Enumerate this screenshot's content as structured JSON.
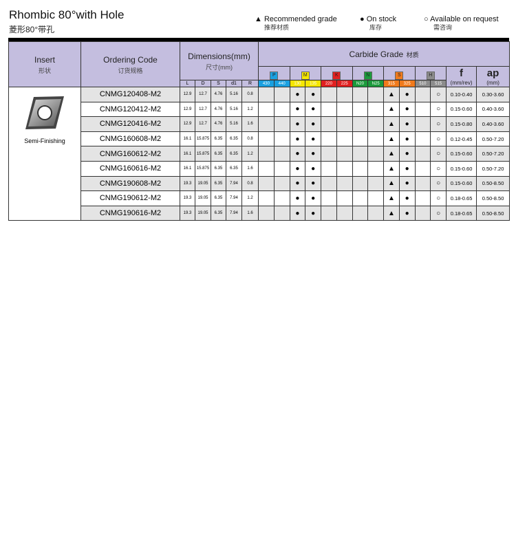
{
  "title": "Rhombic 80°with Hole",
  "subtitle": "菱形80°带孔",
  "legend": [
    {
      "icon": "triangle",
      "symbol": "▲",
      "label": "Recommended grade",
      "label_cn": "推荐材质"
    },
    {
      "icon": "filled-circle",
      "symbol": "●",
      "label": "On stock",
      "label_cn": "库存"
    },
    {
      "icon": "open-circle",
      "symbol": "○",
      "label": "Available on request",
      "label_cn": "需咨询"
    }
  ],
  "header": {
    "insert": "Insert",
    "insert_cn": "形状",
    "ordering": "Ordering Code",
    "ordering_cn": "订货规格",
    "dims": "Dimensions(mm)",
    "dims_cn": "尺寸(mm)",
    "dim_cols": [
      "L",
      "D",
      "S",
      "d1",
      "R"
    ],
    "carbide": "Carbide Grade",
    "carbide_cn": "材质",
    "f": "f",
    "f_unit": "(mm/rev)",
    "ap": "ap",
    "ap_unit": "(mm)"
  },
  "groups": [
    {
      "letter": "P",
      "color": "#1aa0e0",
      "grades": [
        "430",
        "440"
      ]
    },
    {
      "letter": "M",
      "color": "#f5e600",
      "grades": [
        "130",
        "135"
      ]
    },
    {
      "letter": "K",
      "color": "#e02020",
      "grades": [
        "220",
        "225"
      ]
    },
    {
      "letter": "N",
      "color": "#1c9a3c",
      "grades": [
        "N20",
        "N25"
      ]
    },
    {
      "letter": "S",
      "color": "#f07a1c",
      "grades": [
        "315",
        "325"
      ]
    },
    {
      "letter": "H",
      "color": "#8c8c8c",
      "grades": [
        "510",
        "515"
      ]
    }
  ],
  "insert_label": "Semi-Finishing",
  "symbols": {
    "rec": "▲",
    "stock": "●",
    "req": "○"
  },
  "rows": [
    {
      "code": "CNMG120408-M2",
      "dims": [
        "12.9",
        "12.7",
        "4.76",
        "5.16",
        "0.8"
      ],
      "grades": [
        "",
        "",
        "stock",
        "stock",
        "",
        "",
        "",
        "",
        "rec",
        "stock",
        "",
        "req"
      ],
      "f": "0.10-0.40",
      "ap": "0.30-3.60"
    },
    {
      "code": "CNMG120412-M2",
      "dims": [
        "12.9",
        "12.7",
        "4.76",
        "5.16",
        "1.2"
      ],
      "grades": [
        "",
        "",
        "stock",
        "stock",
        "",
        "",
        "",
        "",
        "rec",
        "stock",
        "",
        "req"
      ],
      "f": "0.15-0.60",
      "ap": "0.40-3.60"
    },
    {
      "code": "CNMG120416-M2",
      "dims": [
        "12.9",
        "12.7",
        "4.76",
        "5.16",
        "1.6"
      ],
      "grades": [
        "",
        "",
        "stock",
        "stock",
        "",
        "",
        "",
        "",
        "rec",
        "stock",
        "",
        "req"
      ],
      "f": "0.15-0.80",
      "ap": "0.40-3.60"
    },
    {
      "code": "CNMG160608-M2",
      "dims": [
        "16.1",
        "15.875",
        "6.35",
        "6.35",
        "0.8"
      ],
      "grades": [
        "",
        "",
        "stock",
        "stock",
        "",
        "",
        "",
        "",
        "rec",
        "stock",
        "",
        "req"
      ],
      "f": "0.12-0.45",
      "ap": "0.50-7.20"
    },
    {
      "code": "CNMG160612-M2",
      "dims": [
        "16.1",
        "15.875",
        "6.35",
        "6.35",
        "1.2"
      ],
      "grades": [
        "",
        "",
        "stock",
        "stock",
        "",
        "",
        "",
        "",
        "rec",
        "stock",
        "",
        "req"
      ],
      "f": "0.15-0.60",
      "ap": "0.50-7.20"
    },
    {
      "code": "CNMG160616-M2",
      "dims": [
        "16.1",
        "15.875",
        "6.35",
        "6.35",
        "1.6"
      ],
      "grades": [
        "",
        "",
        "stock",
        "stock",
        "",
        "",
        "",
        "",
        "rec",
        "stock",
        "",
        "req"
      ],
      "f": "0.15-0.60",
      "ap": "0.50-7.20"
    },
    {
      "code": "CNMG190608-M2",
      "dims": [
        "19.3",
        "19.05",
        "6.35",
        "7.94",
        "0.8"
      ],
      "grades": [
        "",
        "",
        "stock",
        "stock",
        "",
        "",
        "",
        "",
        "rec",
        "stock",
        "",
        "req"
      ],
      "f": "0.15-0.60",
      "ap": "0.50-8.50"
    },
    {
      "code": "CNMG190612-M2",
      "dims": [
        "19.3",
        "19.05",
        "6.35",
        "7.94",
        "1.2"
      ],
      "grades": [
        "",
        "",
        "stock",
        "stock",
        "",
        "",
        "",
        "",
        "rec",
        "stock",
        "",
        "req"
      ],
      "f": "0.18-0.65",
      "ap": "0.50-8.50"
    },
    {
      "code": "CNMG190616-M2",
      "dims": [
        "19.3",
        "19.05",
        "6.35",
        "7.94",
        "1.6"
      ],
      "grades": [
        "",
        "",
        "stock",
        "stock",
        "",
        "",
        "",
        "",
        "rec",
        "stock",
        "",
        "req"
      ],
      "f": "0.18-0.65",
      "ap": "0.50-8.50"
    }
  ]
}
